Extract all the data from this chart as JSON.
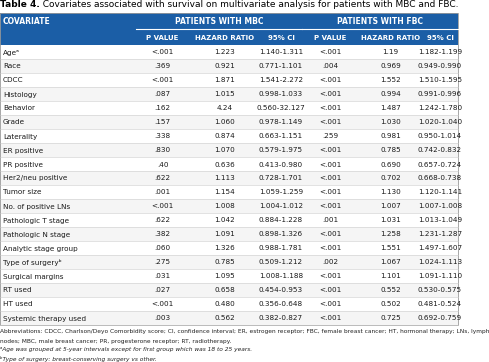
{
  "title_bold": "Table 4.",
  "title_rest": "  Covariates associated with survival on multivariate analysis for patients with MBC and FBC.",
  "header_bg": "#1b5ea6",
  "subheader_bg": "#1b5ea6",
  "row_bg_even": "#ffffff",
  "row_bg_odd": "#f5f5f5",
  "header_text_color": "#ffffff",
  "data_text_color": "#1a1a1a",
  "covariate_col": "COVARIATE",
  "group_headers": [
    "PATIENTS WITH MBC",
    "PATIENTS WITH FBC"
  ],
  "col_labels": [
    "P VALUE",
    "HAZARD RATIO",
    "95% CI",
    "P VALUE",
    "HAZARD RATIO",
    "95% CI"
  ],
  "rows": [
    [
      "Ageᵃ",
      "<.001",
      "1.223",
      "1.140-1.311",
      "<.001",
      "1.19",
      "1.182-1.199"
    ],
    [
      "Race",
      ".369",
      "0.921",
      "0.771-1.101",
      ".004",
      "0.969",
      "0.949-0.990"
    ],
    [
      "CDCC",
      "<.001",
      "1.871",
      "1.541-2.272",
      "<.001",
      "1.552",
      "1.510-1.595"
    ],
    [
      "Histology",
      ".087",
      "1.015",
      "0.998-1.033",
      "<.001",
      "0.994",
      "0.991-0.996"
    ],
    [
      "Behavior",
      ".162",
      "4.24",
      "0.560-32.127",
      "<.001",
      "1.487",
      "1.242-1.780"
    ],
    [
      "Grade",
      ".157",
      "1.060",
      "0.978-1.149",
      "<.001",
      "1.030",
      "1.020-1.040"
    ],
    [
      "Laterality",
      ".338",
      "0.874",
      "0.663-1.151",
      ".259",
      "0.981",
      "0.950-1.014"
    ],
    [
      "ER positive",
      ".830",
      "1.070",
      "0.579-1.975",
      "<.001",
      "0.785",
      "0.742-0.832"
    ],
    [
      "PR positive",
      ".40",
      "0.636",
      "0.413-0.980",
      "<.001",
      "0.690",
      "0.657-0.724"
    ],
    [
      "Her2/neu positive",
      ".622",
      "1.113",
      "0.728-1.701",
      "<.001",
      "0.702",
      "0.668-0.738"
    ],
    [
      "Tumor size",
      ".001",
      "1.154",
      "1.059-1.259",
      "<.001",
      "1.130",
      "1.120-1.141"
    ],
    [
      "No. of positive LNs",
      "<.001",
      "1.008",
      "1.004-1.012",
      "<.001",
      "1.007",
      "1.007-1.008"
    ],
    [
      "Pathologic T stage",
      ".622",
      "1.042",
      "0.884-1.228",
      ".001",
      "1.031",
      "1.013-1.049"
    ],
    [
      "Pathologic N stage",
      ".382",
      "1.091",
      "0.898-1.326",
      "<.001",
      "1.258",
      "1.231-1.287"
    ],
    [
      "Analytic stage group",
      ".060",
      "1.326",
      "0.988-1.781",
      "<.001",
      "1.551",
      "1.497-1.607"
    ],
    [
      "Type of surgeryᵇ",
      ".275",
      "0.785",
      "0.509-1.212",
      ".002",
      "1.067",
      "1.024-1.113"
    ],
    [
      "Surgical margins",
      ".031",
      "1.095",
      "1.008-1.188",
      "<.001",
      "1.101",
      "1.091-1.110"
    ],
    [
      "RT used",
      ".027",
      "0.658",
      "0.454-0.953",
      "<.001",
      "0.552",
      "0.530-0.575"
    ],
    [
      "HT used",
      "<.001",
      "0.480",
      "0.356-0.648",
      "<.001",
      "0.502",
      "0.481-0.524"
    ],
    [
      "Systemic therapy used",
      ".003",
      "0.562",
      "0.382-0.827",
      "<.001",
      "0.725",
      "0.692-0.759"
    ]
  ],
  "footnote1": "Abbreviations: CDCC, Charlson/Deyo Comorbidity score; CI, confidence interval; ER, estrogen receptor; FBC, female breast cancer; HT, hormonal therapy; LNs, lymph",
  "footnote2": "nodes; MBC, male breast cancer; PR, progesterone receptor; RT, radiotherapy.",
  "footnote3": "ᵃAge was grouped at 5-year intervals except for first group which was 18 to 25 years.",
  "footnote4": "ᵇType of surgery: breast-conserving surgery vs other."
}
